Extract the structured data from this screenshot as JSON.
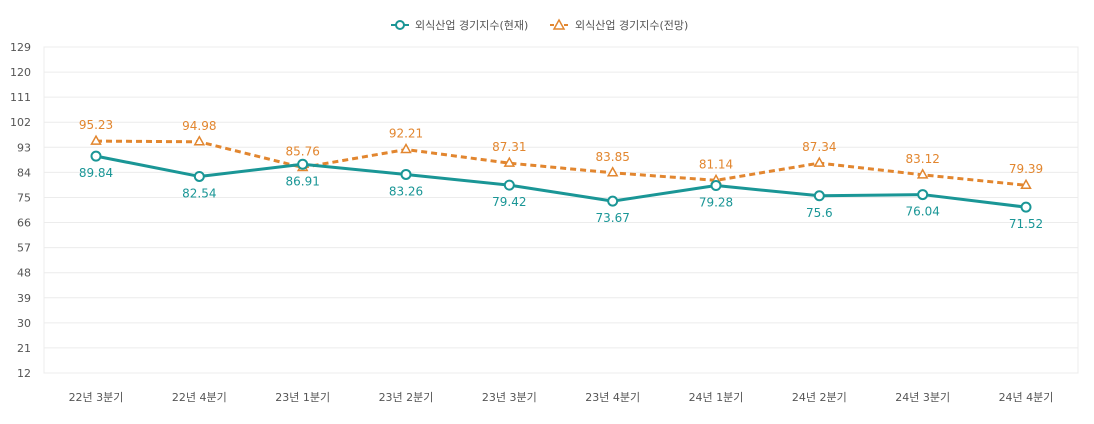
{
  "chart_data": {
    "type": "line",
    "title": "",
    "xlabel": "",
    "ylabel": "",
    "categories": [
      "22년 3분기",
      "22년 4분기",
      "23년 1분기",
      "23년 2분기",
      "23년 3분기",
      "23년 4분기",
      "24년 1분기",
      "24년 2분기",
      "24년 3분기",
      "24년 4분기"
    ],
    "yticks": [
      12,
      21,
      30,
      39,
      48,
      57,
      66,
      75,
      84,
      93,
      102,
      111,
      120,
      129
    ],
    "ylim": [
      12,
      129
    ],
    "legend_position": "top-center",
    "grid": true,
    "series": [
      {
        "name": "외식산업 경기지수(현재)",
        "color": "#1a9696",
        "marker": "circle",
        "line_style": "solid",
        "values": [
          89.84,
          82.54,
          86.91,
          83.26,
          79.42,
          73.67,
          79.28,
          75.6,
          76.04,
          71.52
        ],
        "labels": [
          "89.84",
          "82.54",
          "86.91",
          "83.26",
          "79.42",
          "73.67",
          "79.28",
          "75.6",
          "76.04",
          "71.52"
        ],
        "label_position": "below"
      },
      {
        "name": "외식산업 경기지수(전망)",
        "color": "#e2862f",
        "marker": "triangle",
        "line_style": "dashed",
        "values": [
          95.23,
          94.98,
          85.76,
          92.21,
          87.31,
          83.85,
          81.14,
          87.34,
          83.12,
          79.39
        ],
        "labels": [
          "95.23",
          "94.98",
          "85.76",
          "92.21",
          "87.31",
          "83.85",
          "81.14",
          "87.34",
          "83.12",
          "79.39"
        ],
        "label_position": "above"
      }
    ]
  }
}
